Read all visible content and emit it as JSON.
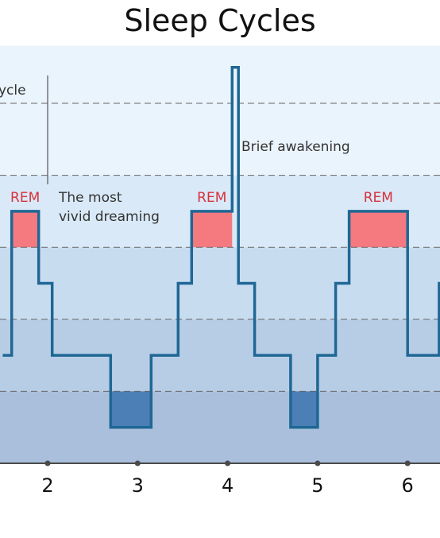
{
  "chart_data": {
    "type": "line",
    "title": "Sleep Cycles",
    "x_ticks": [
      2,
      3,
      4,
      5,
      6
    ],
    "xlim": [
      1.5,
      6.4
    ],
    "levels": [
      {
        "id": "awake",
        "value": 5
      },
      {
        "id": "rem",
        "value": 4
      },
      {
        "id": "n1",
        "value": 3
      },
      {
        "id": "n2",
        "value": 2
      },
      {
        "id": "n3",
        "value": 1
      },
      {
        "id": "deep",
        "value": 0
      }
    ],
    "ylim": [
      -1,
      5.8
    ],
    "series": [
      {
        "type": "step",
        "points": [
          [
            1.5,
            1.5
          ],
          [
            1.6,
            1.5
          ],
          [
            1.6,
            3.5
          ],
          [
            1.9,
            3.5
          ],
          [
            1.9,
            2.5
          ],
          [
            2.05,
            2.5
          ],
          [
            2.05,
            1.5
          ],
          [
            2.7,
            1.5
          ],
          [
            2.7,
            0.5
          ],
          [
            3.15,
            0.5
          ],
          [
            3.15,
            1.5
          ],
          [
            3.45,
            1.5
          ],
          [
            3.45,
            2.5
          ],
          [
            3.6,
            2.5
          ],
          [
            3.6,
            3.5
          ],
          [
            4.05,
            3.5
          ],
          [
            4.05,
            5.5
          ],
          [
            4.12,
            5.5
          ],
          [
            4.12,
            2.5
          ],
          [
            4.3,
            2.5
          ],
          [
            4.3,
            1.5
          ],
          [
            4.7,
            1.5
          ],
          [
            4.7,
            0.5
          ],
          [
            5.0,
            0.5
          ],
          [
            5.0,
            1.5
          ],
          [
            5.2,
            1.5
          ],
          [
            5.2,
            2.5
          ],
          [
            5.35,
            2.5
          ],
          [
            5.35,
            3.5
          ],
          [
            6.0,
            3.5
          ],
          [
            6.0,
            1.5
          ],
          [
            6.35,
            1.5
          ],
          [
            6.35,
            2.5
          ],
          [
            6.4,
            2.5
          ]
        ]
      }
    ],
    "rem_periods": [
      {
        "label": "REM",
        "start": 1.6,
        "end": 1.9
      },
      {
        "label": "REM",
        "start": 3.6,
        "end": 4.05
      },
      {
        "label": "REM",
        "start": 5.35,
        "end": 6.0
      }
    ],
    "deep_periods": [
      {
        "start": 2.7,
        "end": 3.15
      },
      {
        "start": 4.7,
        "end": 5.0
      }
    ],
    "annotations": [
      {
        "id": "cycle",
        "text": "ycle",
        "x": 1.5,
        "y": 5.0
      },
      {
        "id": "vivid-1",
        "text": "The most",
        "x": 2.0,
        "y": 3.9
      },
      {
        "id": "vivid-2",
        "text": "vivid dreaming",
        "x": 2.0,
        "y": 3.65
      },
      {
        "id": "awakening",
        "text": "Brief awakening",
        "x": 4.18,
        "y": 5.3
      }
    ],
    "colors": {
      "line": "#1f6795",
      "rem_fill": "#f47a80",
      "rem_text": "#d8333d",
      "deep_fill": "#4b7fb5",
      "band_top": "#eaf4fc",
      "band_2": "#d9e9f7",
      "band_3": "#c8dcf0",
      "band_4": "#b7cde6",
      "band_5": "#a9bfdc",
      "axis": "#4a4a4a",
      "gridline": "#666666"
    }
  }
}
